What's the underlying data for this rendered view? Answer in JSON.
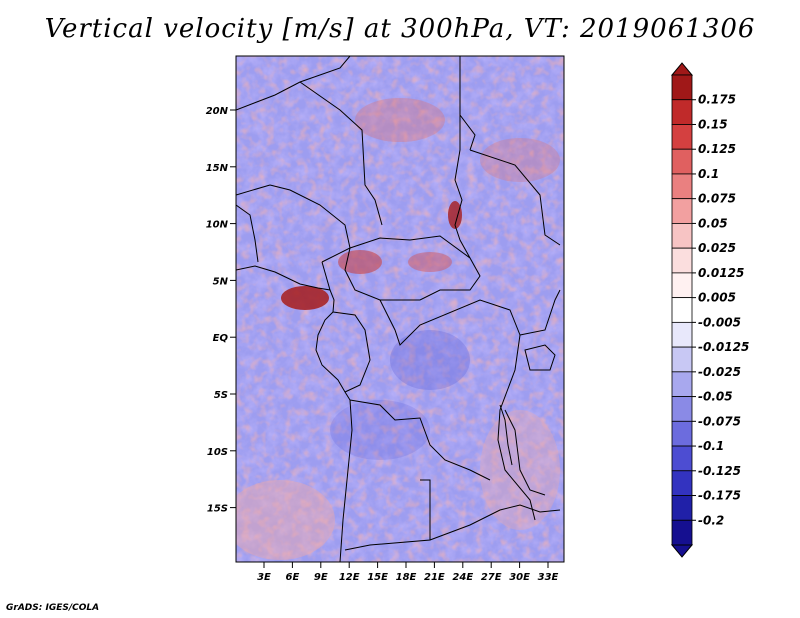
{
  "title": "Vertical velocity [m/s] at 300hPa, VT: 2019061306",
  "credit": "GrADS: IGES/COLA",
  "lat_ticks": [
    "20N",
    "15N",
    "10N",
    "5N",
    "EQ",
    "5S",
    "10S",
    "15S"
  ],
  "lon_ticks": [
    "3E",
    "6E",
    "9E",
    "12E",
    "15E",
    "18E",
    "21E",
    "24E",
    "27E",
    "30E",
    "33E"
  ],
  "colorbar": {
    "labels": [
      "0.175",
      "0.15",
      "0.125",
      "0.1",
      "0.075",
      "0.05",
      "0.025",
      "0.0125",
      "0.005",
      "-0.005",
      "-0.0125",
      "-0.025",
      "-0.05",
      "-0.075",
      "-0.1",
      "-0.125",
      "-0.175",
      "-0.2"
    ],
    "colors": [
      "#a01818",
      "#c02a2a",
      "#d44040",
      "#e06060",
      "#ea8080",
      "#f2a0a0",
      "#f7c4c4",
      "#fbdede",
      "#fff1f1",
      "#ffffff",
      "#e8e8fb",
      "#c8c8f4",
      "#a8a8ee",
      "#8a8ae6",
      "#6c6cde",
      "#4d4dd2",
      "#3333c0",
      "#2020a8",
      "#150f90"
    ],
    "top_color": "#a01818",
    "bottom_color": "#150f90"
  },
  "colors": {
    "positive": "#e05050",
    "negative": "#6a6ae0",
    "border": "#000000"
  }
}
